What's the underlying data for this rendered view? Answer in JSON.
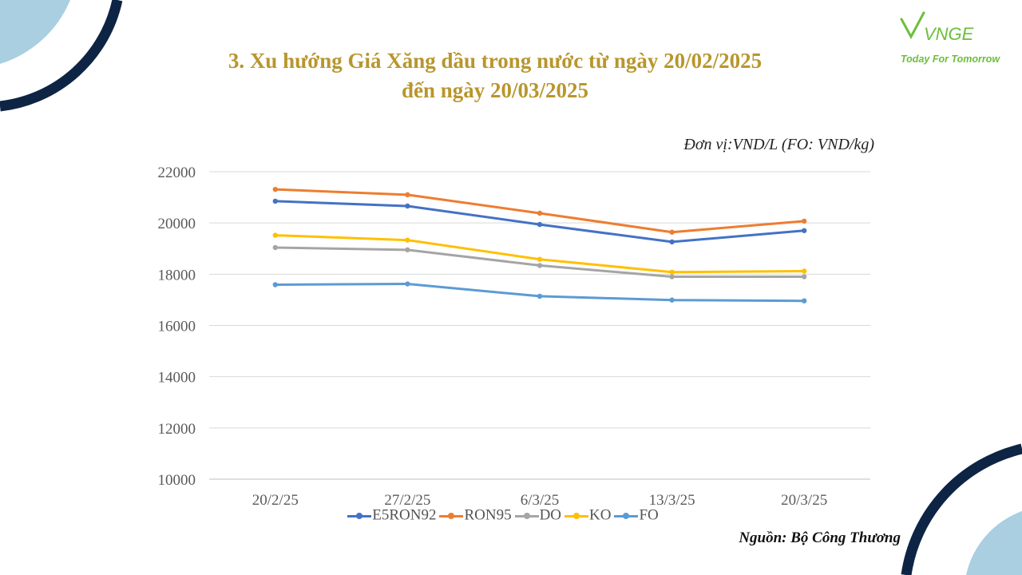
{
  "header": {
    "title_line1": "3. Xu hướng Giá Xăng dầu trong nước từ ngày 20/02/2025",
    "title_line2": "đến ngày 20/03/2025"
  },
  "logo": {
    "word": "VNGE",
    "tagline": "Today For Tomorrow",
    "color": "#6cbf3c"
  },
  "unit_note": "Đơn vị:VND/L (FO: VND/kg)",
  "source_note": "Nguồn: Bộ Công Thương",
  "colors": {
    "title": "#b8962e",
    "decor_navy": "#0e2444",
    "decor_light": "#a9cfe0"
  },
  "chart_data": {
    "type": "line",
    "categories": [
      "20/2/25",
      "27/2/25",
      "6/3/25",
      "13/3/25",
      "20/3/25"
    ],
    "ylim": [
      10000,
      22000
    ],
    "yticks": [
      10000,
      12000,
      14000,
      16000,
      18000,
      20000,
      22000
    ],
    "grid": true,
    "legend_position": "bottom",
    "series": [
      {
        "name": "E5RON92",
        "color": "#4472c4",
        "values": [
          20850,
          20660,
          19940,
          19260,
          19700
        ]
      },
      {
        "name": "RON95",
        "color": "#ed7d31",
        "values": [
          21310,
          21100,
          20380,
          19640,
          20070
        ]
      },
      {
        "name": "DO",
        "color": "#a5a5a5",
        "values": [
          19040,
          18950,
          18340,
          17900,
          17900
        ]
      },
      {
        "name": "KO",
        "color": "#ffc000",
        "values": [
          19520,
          19330,
          18580,
          18080,
          18120
        ]
      },
      {
        "name": "FO",
        "color": "#5b9bd5",
        "values": [
          17590,
          17620,
          17140,
          16990,
          16960
        ]
      }
    ]
  }
}
